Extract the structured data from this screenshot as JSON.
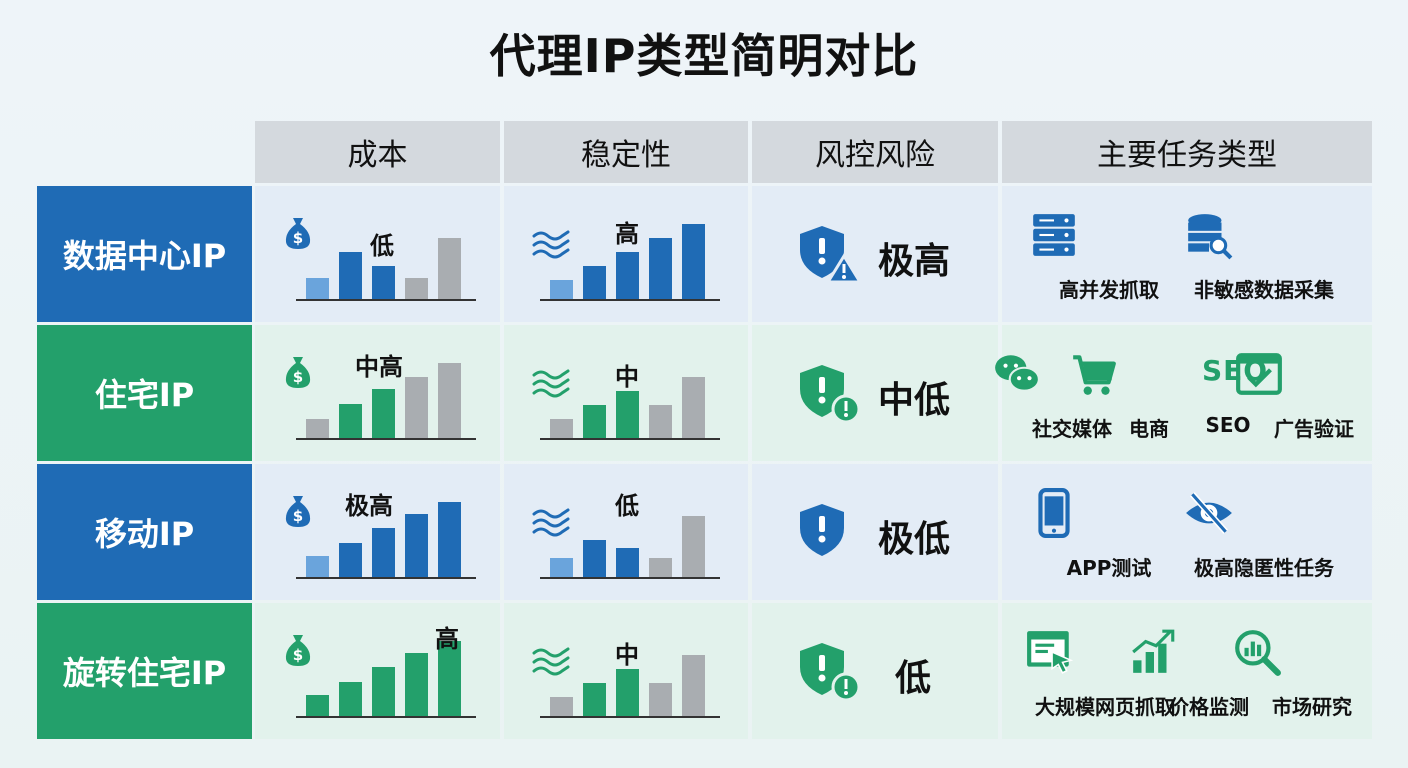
{
  "title": "代理IP类型简明对比",
  "headers": [
    "成本",
    "稳定性",
    "风控风险",
    "主要任务类型"
  ],
  "colors": {
    "blue": "#1f6bb5",
    "green": "#23a06b",
    "blue_row_bg": "#e3ecf6",
    "green_row_bg": "#e2f2ec",
    "gray_bar": "#a9adb1"
  },
  "rows": [
    {
      "label": "数据中心IP",
      "theme": "blue",
      "cost": "低",
      "stability": "高",
      "risk": "极高",
      "risk_icon": "shield-warning-triangle-icon",
      "tasks": [
        {
          "icon": "server-icon",
          "label": "高并发抓取"
        },
        {
          "icon": "database-search-icon",
          "label": "非敏感数据采集"
        }
      ]
    },
    {
      "label": "住宅IP",
      "theme": "green",
      "cost": "中高",
      "stability": "中",
      "risk": "中低",
      "risk_icon": "shield-alert-circle-icon",
      "tasks": [
        {
          "icon": "wechat-icon",
          "label": "社交媒体"
        },
        {
          "icon": "shopping-cart-icon",
          "label": "电商"
        },
        {
          "icon": "seo-icon",
          "icon_text": "SEO",
          "label": "SEO"
        },
        {
          "icon": "browser-check-icon",
          "label": "广告验证"
        }
      ]
    },
    {
      "label": "移动IP",
      "theme": "blue",
      "cost": "极高",
      "stability": "低",
      "risk": "极低",
      "risk_icon": "shield-exclamation-icon",
      "tasks": [
        {
          "icon": "smartphone-icon",
          "label": "APP测试"
        },
        {
          "icon": "eye-off-icon",
          "label": "极高隐匿性任务"
        }
      ]
    },
    {
      "label": "旋转住宅IP",
      "theme": "green",
      "cost": "高",
      "stability": "中",
      "risk": "低",
      "risk_icon": "shield-alert-circle-icon",
      "tasks": [
        {
          "icon": "web-click-icon",
          "label": "大规模网页抓取"
        },
        {
          "icon": "growth-chart-icon",
          "label": "价格监测"
        },
        {
          "icon": "analytics-search-icon",
          "label": "市场研究"
        }
      ]
    }
  ]
}
